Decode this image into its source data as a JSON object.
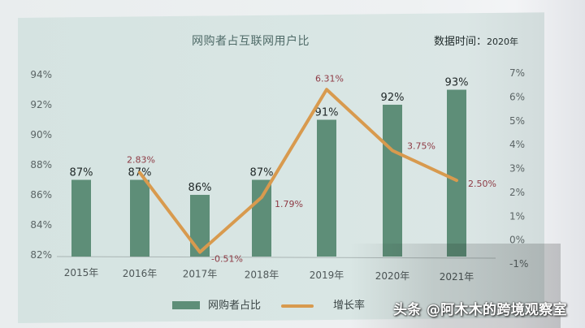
{
  "header": {
    "title": "网购者占互联网用户比",
    "date_note_label": "数据时间：",
    "date_note_year": "2020年"
  },
  "legend": {
    "bar_label": "网购者占比",
    "line_label": "增长率"
  },
  "watermark": "头条 @阿木木的跨境观察室",
  "colors": {
    "bar": "#5e8e78",
    "line": "#d89a4e",
    "line_label": "#8e3b45",
    "panel_bg": "#d7e4e2"
  },
  "chart_data": {
    "type": "bar+line",
    "title": "网购者占互联网用户比",
    "subtitle": "数据时间：2020年",
    "categories": [
      "2015年",
      "2016年",
      "2017年",
      "2018年",
      "2019年",
      "2020年",
      "2021年"
    ],
    "series": [
      {
        "name": "网购者占比",
        "type": "bar",
        "axis": "left",
        "values": [
          87,
          87,
          86,
          87,
          91,
          92,
          93
        ],
        "labels": [
          "87%",
          "87%",
          "86%",
          "87%",
          "91%",
          "92%",
          "93%"
        ]
      },
      {
        "name": "增长率",
        "type": "line",
        "axis": "right",
        "values": [
          null,
          2.83,
          -0.51,
          1.79,
          6.31,
          3.75,
          2.5
        ],
        "labels": [
          null,
          "2.83%",
          "-0.51%",
          "1.79%",
          "6.31%",
          "3.75%",
          "2.50%"
        ]
      }
    ],
    "left_axis": {
      "ylim": [
        82,
        94
      ],
      "ticks": [
        "94%",
        "92%",
        "90%",
        "88%",
        "86%",
        "84%",
        "82%"
      ]
    },
    "right_axis": {
      "ylim": [
        -1,
        7
      ],
      "ticks": [
        "7%",
        "6%",
        "5%",
        "4%",
        "3%",
        "2%",
        "1%",
        "0%",
        "-1%"
      ]
    },
    "xlabel": "",
    "ylabel": "",
    "grid": false,
    "legend_position": "bottom"
  }
}
